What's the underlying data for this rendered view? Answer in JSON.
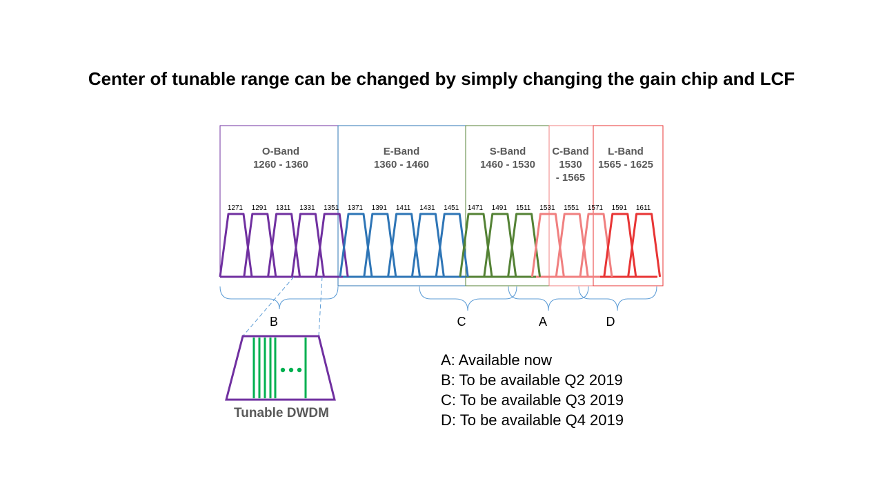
{
  "title": "Center of tunable range can be changed by simply changing the gain chip and LCF",
  "colors": {
    "o_band": "#7030a0",
    "e_band": "#2e75b6",
    "s_band": "#548235",
    "c_band": "#f08080",
    "l_band": "#e83535",
    "brace": "#5b9bd5",
    "dwdm_line": "#00b050",
    "label_gray": "#595959"
  },
  "bands": [
    {
      "name": "O-Band",
      "range_lines": [
        "1260 - 1360"
      ]
    },
    {
      "name": "E-Band",
      "range_lines": [
        "1360 - 1460"
      ]
    },
    {
      "name": "S-Band",
      "range_lines": [
        "1460 - 1530"
      ]
    },
    {
      "name": "C-Band",
      "range_lines": [
        "1530",
        "- 1565"
      ]
    },
    {
      "name": "L-Band",
      "range_lines": [
        "1565 - 1625"
      ]
    }
  ],
  "channels": [
    "1271",
    "1291",
    "1311",
    "1331",
    "1351",
    "1371",
    "1391",
    "1411",
    "1431",
    "1451",
    "1471",
    "1491",
    "1511",
    "1531",
    "1551",
    "1571",
    "1591",
    "1611"
  ],
  "braces": [
    "B",
    "C",
    "A",
    "D"
  ],
  "legend": [
    "A: Available now",
    "B: To be available Q2 2019",
    "C: To be available Q3 2019",
    "D: To be available Q4 2019"
  ],
  "inset_caption": "Tunable DWDM"
}
